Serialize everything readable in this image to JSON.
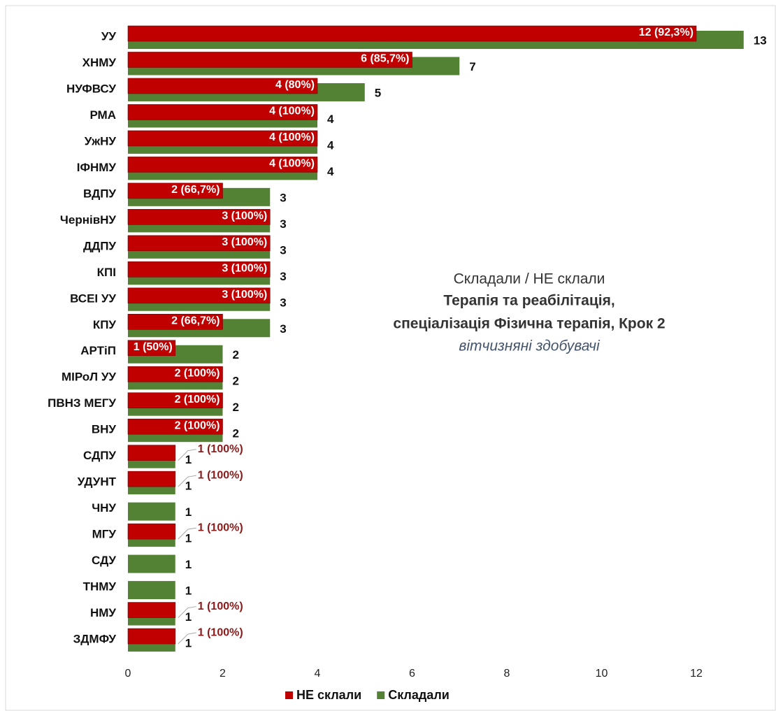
{
  "chart_data": {
    "type": "bar",
    "orientation": "horizontal",
    "annotation": [
      "Складали / НЕ склали",
      "Терапія та реабілітація,",
      "спеціалізація Фізична терапія, Крок 2",
      "вітчизняні здобувачі"
    ],
    "categories": [
      "УУ",
      "ХНМУ",
      "НУФВСУ",
      "РМА",
      "УжНУ",
      "ІФНМУ",
      "ВДПУ",
      "ЧернівНУ",
      "ДДПУ",
      "КПІ",
      "ВСЕІ УУ",
      "КПУ",
      "АРТіП",
      "МІРоЛ УУ",
      "ПВНЗ МЕГУ",
      "ВНУ",
      "СДПУ",
      "УДУНТ",
      "ЧНУ",
      "МГУ",
      "СДУ",
      "ТНМУ",
      "НМУ",
      "ЗДМФУ"
    ],
    "series": [
      {
        "name": "Складали",
        "color": "#548235",
        "values": [
          13,
          7,
          5,
          4,
          4,
          4,
          3,
          3,
          3,
          3,
          3,
          3,
          2,
          2,
          2,
          2,
          1,
          1,
          1,
          1,
          1,
          1,
          1,
          1
        ]
      },
      {
        "name": "НЕ склали",
        "color": "#c00000",
        "values": [
          12,
          6,
          4,
          4,
          4,
          4,
          2,
          3,
          3,
          3,
          3,
          2,
          1,
          2,
          2,
          2,
          1,
          1,
          null,
          1,
          null,
          null,
          1,
          1
        ],
        "value_labels": [
          "12 (92,3%)",
          "6 (85,7%)",
          "4 (80%)",
          "4 (100%)",
          "4 (100%)",
          "4 (100%)",
          "2 (66,7%)",
          "3 (100%)",
          "3 (100%)",
          "3 (100%)",
          "3 (100%)",
          "2 (66,7%)",
          "1 (50%)",
          "2 (100%)",
          "2 (100%)",
          "2 (100%)",
          "1 (100%)",
          "1 (100%)",
          null,
          "1 (100%)",
          null,
          null,
          "1 (100%)",
          "1 (100%)"
        ]
      }
    ],
    "xlim": [
      0,
      13
    ],
    "xticks": [
      0,
      2,
      4,
      6,
      8,
      10,
      12
    ],
    "grid": false,
    "legend": "bottom"
  }
}
